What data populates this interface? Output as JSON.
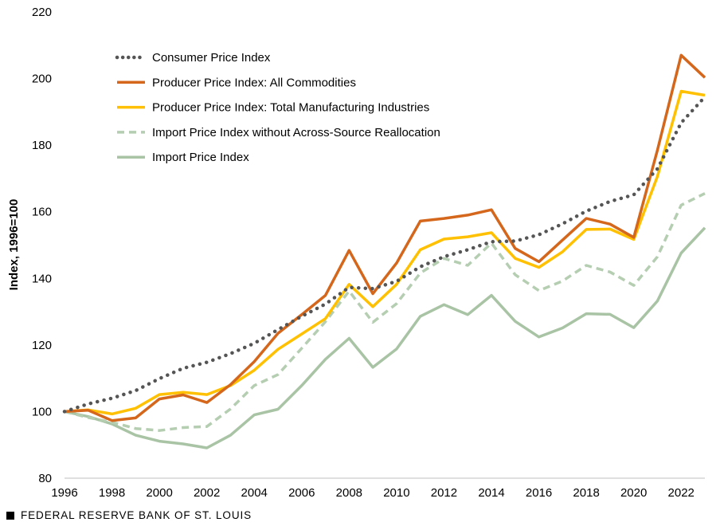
{
  "chart_data": {
    "type": "line",
    "ylabel": "Index, 1996=100",
    "ylim": [
      80,
      220
    ],
    "yticks": [
      80,
      100,
      120,
      140,
      160,
      180,
      200,
      220
    ],
    "xlim": [
      1996,
      2023
    ],
    "xticks": [
      1996,
      1998,
      2000,
      2002,
      2004,
      2006,
      2008,
      2010,
      2012,
      2014,
      2016,
      2018,
      2020,
      2022
    ],
    "grid": false,
    "legend_position": "top-left",
    "x": [
      1996,
      1997,
      1998,
      1999,
      2000,
      2001,
      2002,
      2003,
      2004,
      2005,
      2006,
      2007,
      2008,
      2009,
      2010,
      2011,
      2012,
      2013,
      2014,
      2015,
      2016,
      2017,
      2018,
      2019,
      2020,
      2021,
      2022,
      2023
    ],
    "series": [
      {
        "name": "Consumer Price Index",
        "color": "#555555",
        "style": "dotted",
        "values": [
          100,
          102.3,
          104.0,
          106.3,
          109.9,
          113.0,
          114.8,
          117.4,
          120.5,
          124.6,
          128.6,
          132.3,
          137.3,
          136.9,
          139.1,
          143.5,
          146.5,
          148.6,
          151.0,
          151.2,
          153.1,
          156.4,
          160.2,
          163.1,
          165.1,
          172.9,
          186.7,
          194.5
        ]
      },
      {
        "name": "Producer Price Index: All Commodities",
        "color": "#D4671C",
        "style": "solid",
        "values": [
          100,
          100.4,
          97.3,
          98.1,
          103.8,
          105.0,
          102.7,
          108.1,
          115.0,
          123.5,
          129.1,
          134.9,
          148.4,
          135.4,
          144.6,
          157.2,
          158.0,
          159.0,
          160.6,
          149.0,
          145.0,
          151.5,
          158.0,
          156.3,
          152.3,
          178.5,
          207.0,
          200.3
        ]
      },
      {
        "name": "Producer Price Index: Total Manufacturing Industries",
        "color": "#FFC000",
        "style": "solid",
        "values": [
          100,
          100.5,
          99.3,
          101.0,
          105.1,
          105.8,
          105.1,
          107.8,
          112.4,
          118.7,
          123.3,
          127.9,
          138.2,
          131.5,
          138.2,
          148.6,
          151.8,
          152.5,
          153.7,
          146.0,
          143.3,
          148.0,
          154.7,
          154.8,
          151.7,
          170.6,
          196.2,
          195.0
        ]
      },
      {
        "name": "Import Price Index without Across-Source Reallocation",
        "color": "#B5CEB2",
        "style": "dashed",
        "values": [
          100,
          98.2,
          96.8,
          94.9,
          94.3,
          95.2,
          95.5,
          100.8,
          107.8,
          111.1,
          119.0,
          127.0,
          136.2,
          126.8,
          132.4,
          141.6,
          146.0,
          143.9,
          150.6,
          141.1,
          136.3,
          139.2,
          143.9,
          141.9,
          137.9,
          146.5,
          162.0,
          165.5
        ]
      },
      {
        "name": "Import Price Index",
        "color": "#A9C3A5",
        "style": "solid",
        "values": [
          100,
          98.5,
          96.3,
          92.9,
          91.1,
          90.3,
          89.1,
          92.9,
          99.0,
          100.7,
          107.8,
          115.7,
          122.0,
          113.3,
          118.8,
          128.6,
          132.1,
          129.1,
          134.9,
          127.1,
          122.4,
          125.1,
          129.4,
          129.2,
          125.2,
          133.2,
          147.6,
          155.2
        ]
      }
    ]
  },
  "footer": {
    "source": "FEDERAL RESERVE BANK OF ST. LOUIS"
  }
}
